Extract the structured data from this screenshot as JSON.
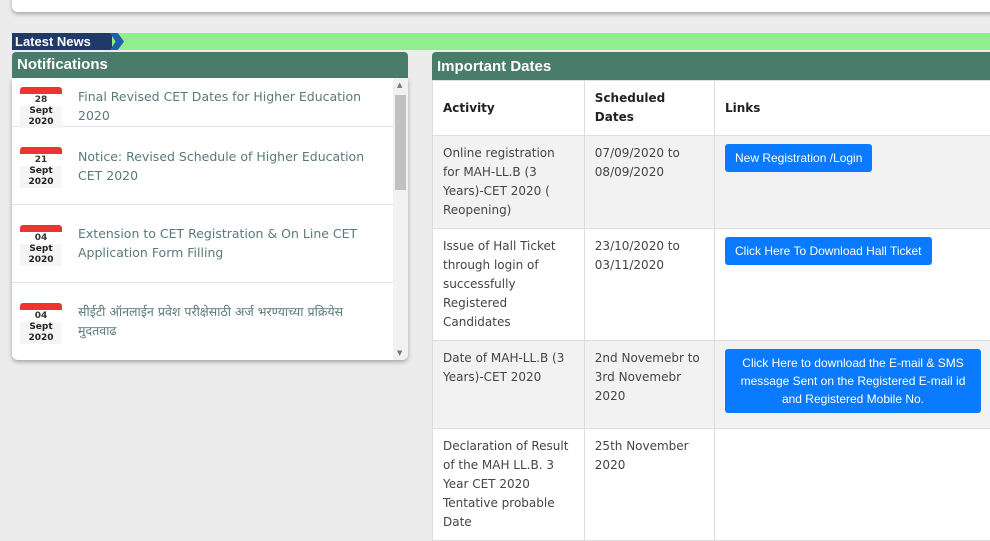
{
  "latest_news": {
    "label": "Latest News"
  },
  "notifications": {
    "title": "Notifications",
    "items": [
      {
        "day": "28",
        "month": "Sept 2020",
        "text": "Final Revised CET Dates for Higher Education 2020"
      },
      {
        "day": "21",
        "month": "Sept 2020",
        "text": "Notice: Revised Schedule of Higher Education CET 2020"
      },
      {
        "day": "04",
        "month": "Sept 2020",
        "text": "Extension to CET Registration & On Line CET Application Form Filling"
      },
      {
        "day": "04",
        "month": "Sept 2020",
        "text": "सीईटी ऑनलाईन प्रवेश परीक्षेसाठी अर्ज भरण्याच्या प्रक्रियेस मुदतवाढ"
      }
    ]
  },
  "important_dates": {
    "title": "Important Dates",
    "headers": [
      "Activity",
      "Scheduled Dates",
      "Links"
    ],
    "rows": [
      {
        "activity": "Online registration for MAH-LL.B (3 Years)-CET 2020 ( Reopening)",
        "dates": "07/09/2020 to 08/09/2020",
        "link": "New Registration /Login"
      },
      {
        "activity": "Issue of Hall Ticket through login of successfully Registered Candidates",
        "dates": "23/10/2020 to 03/11/2020",
        "link": "Click Here To Download Hall Ticket"
      },
      {
        "activity": "Date of MAH-LL.B (3 Years)-CET 2020",
        "dates": "2nd Novemebr to 3rd Novemebr 2020",
        "link": "Click Here to download the E-mail & SMS message Sent on the Registered E-mail id and Registered Mobile No."
      },
      {
        "activity": "Declaration of Result of the MAH LL.B. 3 Year CET 2020 Tentative probable Date",
        "dates": "25th November 2020",
        "link": null
      }
    ]
  },
  "colors": {
    "header": "#4a7c6c",
    "news_band": "#90ee90",
    "news_label": "#1f3a68",
    "button": "#0a7bff"
  }
}
